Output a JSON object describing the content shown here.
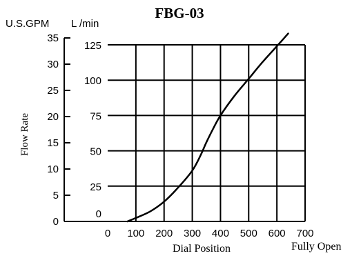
{
  "chart_data": {
    "type": "line",
    "title": "FBG-03",
    "xlabel": "Dial Position",
    "x_end_label": "Fully Open",
    "ylabel": "Flow Rate",
    "y_unit_gpm": "U.S.GPM",
    "y_unit_lmin": "L /min",
    "x_ticks": [
      0,
      100,
      200,
      300,
      400,
      500,
      600,
      700
    ],
    "xlim": [
      0,
      700
    ],
    "y_ticks_gpm": [
      0,
      5,
      10,
      15,
      20,
      25,
      30,
      35
    ],
    "ylim_gpm": [
      0,
      35
    ],
    "y_ticks_lmin": [
      0,
      25,
      50,
      75,
      100,
      125
    ],
    "ylim_lmin": [
      0,
      125
    ],
    "grid": true,
    "series": [
      {
        "x": [
          70,
          100,
          150,
          200,
          250,
          300,
          330,
          350,
          375,
          400,
          450,
          500,
          550,
          600,
          640
        ],
        "y": [
          0,
          2.5,
          7,
          14,
          24,
          36,
          47,
          56,
          66,
          75,
          89,
          101,
          113,
          124,
          133
        ]
      }
    ]
  }
}
